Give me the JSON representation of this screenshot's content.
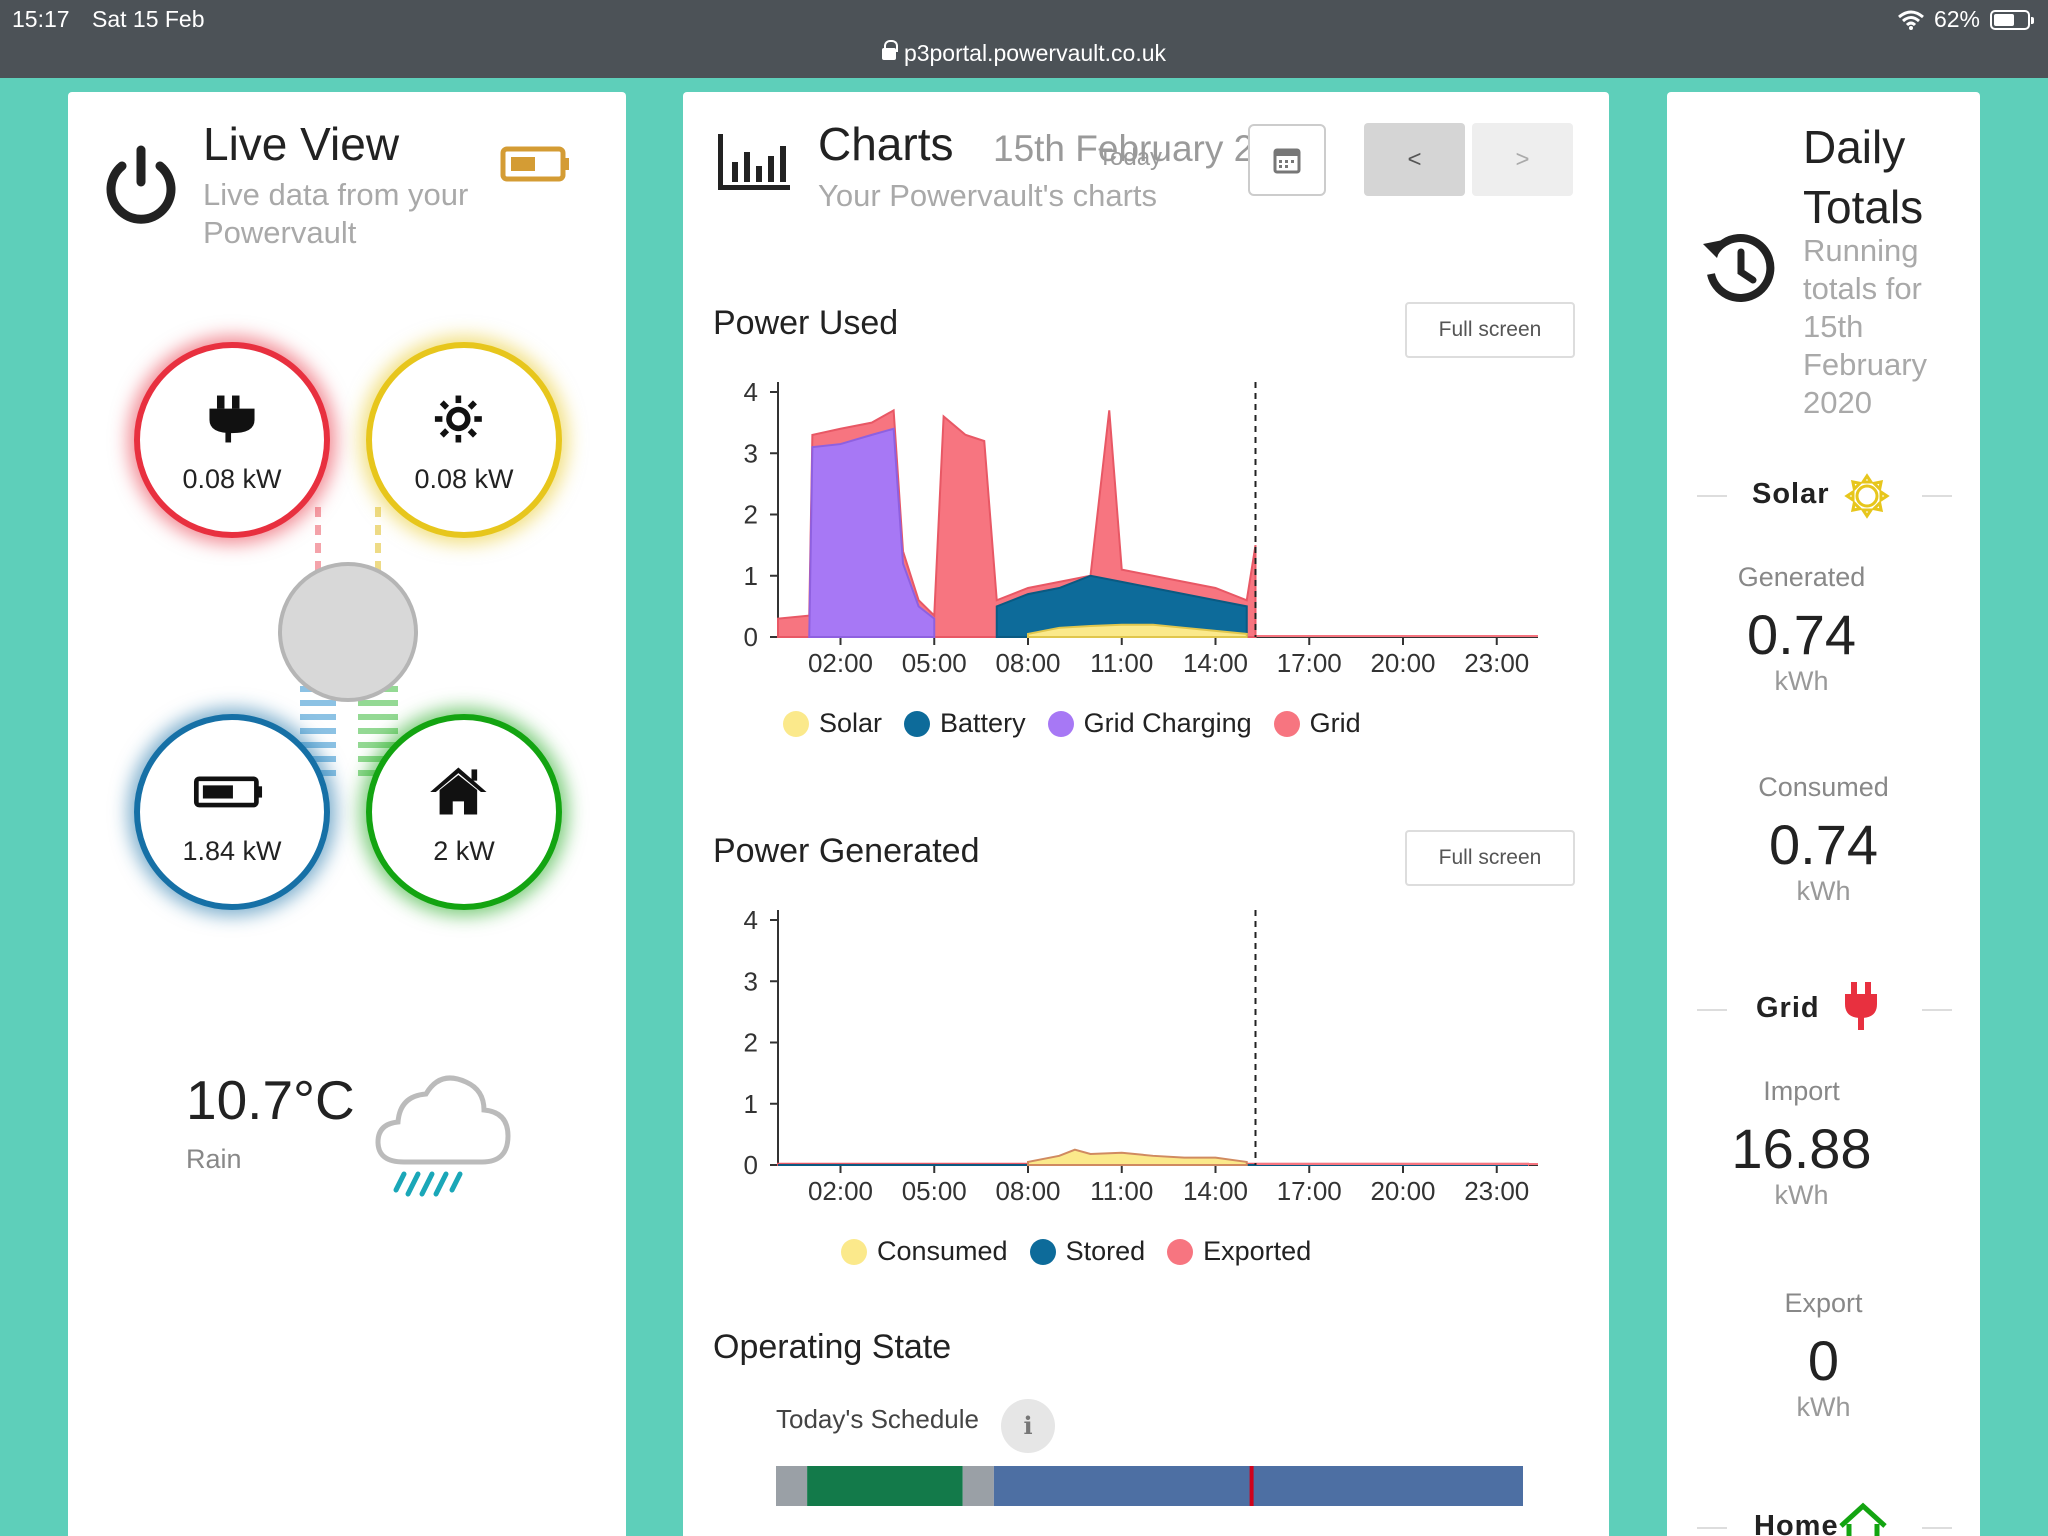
{
  "status_bar": {
    "time": "15:17",
    "date": "Sat 15 Feb",
    "url": "p3portal.powervault.co.uk",
    "battery": "62%",
    "battery_level": 0.62
  },
  "live_view": {
    "title": "Live View",
    "subtitle": "Live data from your Powervault",
    "grid": {
      "value": "0.08 kW",
      "icon": "plug-icon",
      "color": "#e8303f"
    },
    "solar": {
      "value": "0.08 kW",
      "icon": "sun-icon",
      "color": "#e7c61c"
    },
    "battery": {
      "value": "1.84 kW",
      "icon": "battery-icon",
      "color": "#1670a6"
    },
    "home": {
      "value": "2 kW",
      "icon": "house-icon",
      "color": "#13a411"
    },
    "weather": {
      "temperature": "10.7°C",
      "condition": "Rain",
      "icon": "rain-cloud-icon"
    }
  },
  "charts": {
    "title": "Charts",
    "date": "15th February 2020",
    "date_overlay": "Today",
    "subtitle": "Your Powervault's charts",
    "prev_label": "<",
    "next_label": ">",
    "fullscreen_label": "Full screen",
    "power_used": {
      "title": "Power Used",
      "legend": [
        {
          "label": "Solar",
          "color": "#fbe98b"
        },
        {
          "label": "Battery",
          "color": "#0d6b9a"
        },
        {
          "label": "Grid Charging",
          "color": "#a778f5"
        },
        {
          "label": "Grid",
          "color": "#f77580"
        }
      ]
    },
    "power_generated": {
      "title": "Power Generated",
      "legend": [
        {
          "label": "Consumed",
          "color": "#fbe98b"
        },
        {
          "label": "Stored",
          "color": "#0d6b9a"
        },
        {
          "label": "Exported",
          "color": "#f77580"
        }
      ]
    },
    "operating_state": {
      "title": "Operating State",
      "schedule_label": "Today's Schedule",
      "info_label": "i",
      "segments": [
        {
          "from": 0,
          "to": 1,
          "color": "#9aa0a6"
        },
        {
          "from": 1,
          "to": 6,
          "color": "#137a4a"
        },
        {
          "from": 6,
          "to": 7,
          "color": "#9aa0a6"
        },
        {
          "from": 7,
          "to": 24,
          "color": "#4d6fa3"
        }
      ],
      "now_marker": 15.28,
      "marker_color": "#d0021b"
    }
  },
  "daily_totals": {
    "title": "Daily Totals",
    "subtitle": "Running totals for 15th February 2020",
    "solar": {
      "label": "Solar",
      "generated_label": "Generated",
      "generated_value": "0.74",
      "generated_unit": "kWh",
      "consumed_label": "Consumed",
      "consumed_value": "0.74",
      "consumed_unit": "kWh"
    },
    "grid": {
      "label": "Grid",
      "import_label": "Import",
      "import_value": "16.88",
      "import_unit": "kWh",
      "export_label": "Export",
      "export_value": "0",
      "export_unit": "kWh"
    },
    "home": {
      "label": "Home"
    }
  },
  "chart_data": [
    {
      "type": "area",
      "title": "Power Used",
      "x_ticks": [
        "02:00",
        "05:00",
        "08:00",
        "11:00",
        "14:00",
        "17:00",
        "20:00",
        "23:00"
      ],
      "y_ticks": [
        0,
        1,
        2,
        3,
        4
      ],
      "xlim": [
        0,
        24
      ],
      "ylim": [
        0,
        4
      ],
      "now_hour": 15.28,
      "series": [
        {
          "name": "Solar",
          "x": [
            8,
            9,
            10,
            11,
            12,
            13,
            14,
            15
          ],
          "values": [
            0.05,
            0.15,
            0.18,
            0.2,
            0.2,
            0.15,
            0.1,
            0.05
          ]
        },
        {
          "name": "Battery",
          "x": [
            7,
            8,
            9,
            10,
            11,
            12,
            13,
            14,
            15
          ],
          "values": [
            0.5,
            0.7,
            0.8,
            1.0,
            0.9,
            0.8,
            0.7,
            0.6,
            0.5
          ]
        },
        {
          "name": "Grid Charging",
          "x": [
            1,
            1.1,
            2,
            3,
            3.7,
            4,
            4.5,
            5
          ],
          "values": [
            0,
            3.1,
            3.15,
            3.3,
            3.4,
            1.2,
            0.5,
            0.3
          ]
        },
        {
          "name": "Grid",
          "x": [
            0,
            1,
            1.1,
            2,
            3,
            3.7,
            4,
            4.5,
            5,
            5.3,
            6,
            6.6,
            7,
            8,
            9,
            10,
            10.6,
            11,
            12,
            13,
            14,
            15,
            15.28
          ],
          "values": [
            0.3,
            0.35,
            3.3,
            3.4,
            3.5,
            3.7,
            1.4,
            0.6,
            0.35,
            3.6,
            3.3,
            3.2,
            0.6,
            0.8,
            0.9,
            1.0,
            3.7,
            1.1,
            1.0,
            0.9,
            0.8,
            0.6,
            1.5
          ]
        }
      ]
    },
    {
      "type": "area",
      "title": "Power Generated",
      "x_ticks": [
        "02:00",
        "05:00",
        "08:00",
        "11:00",
        "14:00",
        "17:00",
        "20:00",
        "23:00"
      ],
      "y_ticks": [
        0,
        1,
        2,
        3,
        4
      ],
      "xlim": [
        0,
        24
      ],
      "ylim": [
        0,
        4
      ],
      "now_hour": 15.28,
      "series": [
        {
          "name": "Consumed",
          "x": [
            8,
            9,
            9.5,
            10,
            11,
            12,
            13,
            14,
            15
          ],
          "values": [
            0.05,
            0.15,
            0.25,
            0.18,
            0.2,
            0.15,
            0.12,
            0.12,
            0.05
          ]
        },
        {
          "name": "Stored",
          "x": [
            0,
            24
          ],
          "values": [
            0,
            0
          ]
        },
        {
          "name": "Exported",
          "x": [
            0,
            24
          ],
          "values": [
            0.02,
            0.02
          ]
        }
      ]
    }
  ]
}
